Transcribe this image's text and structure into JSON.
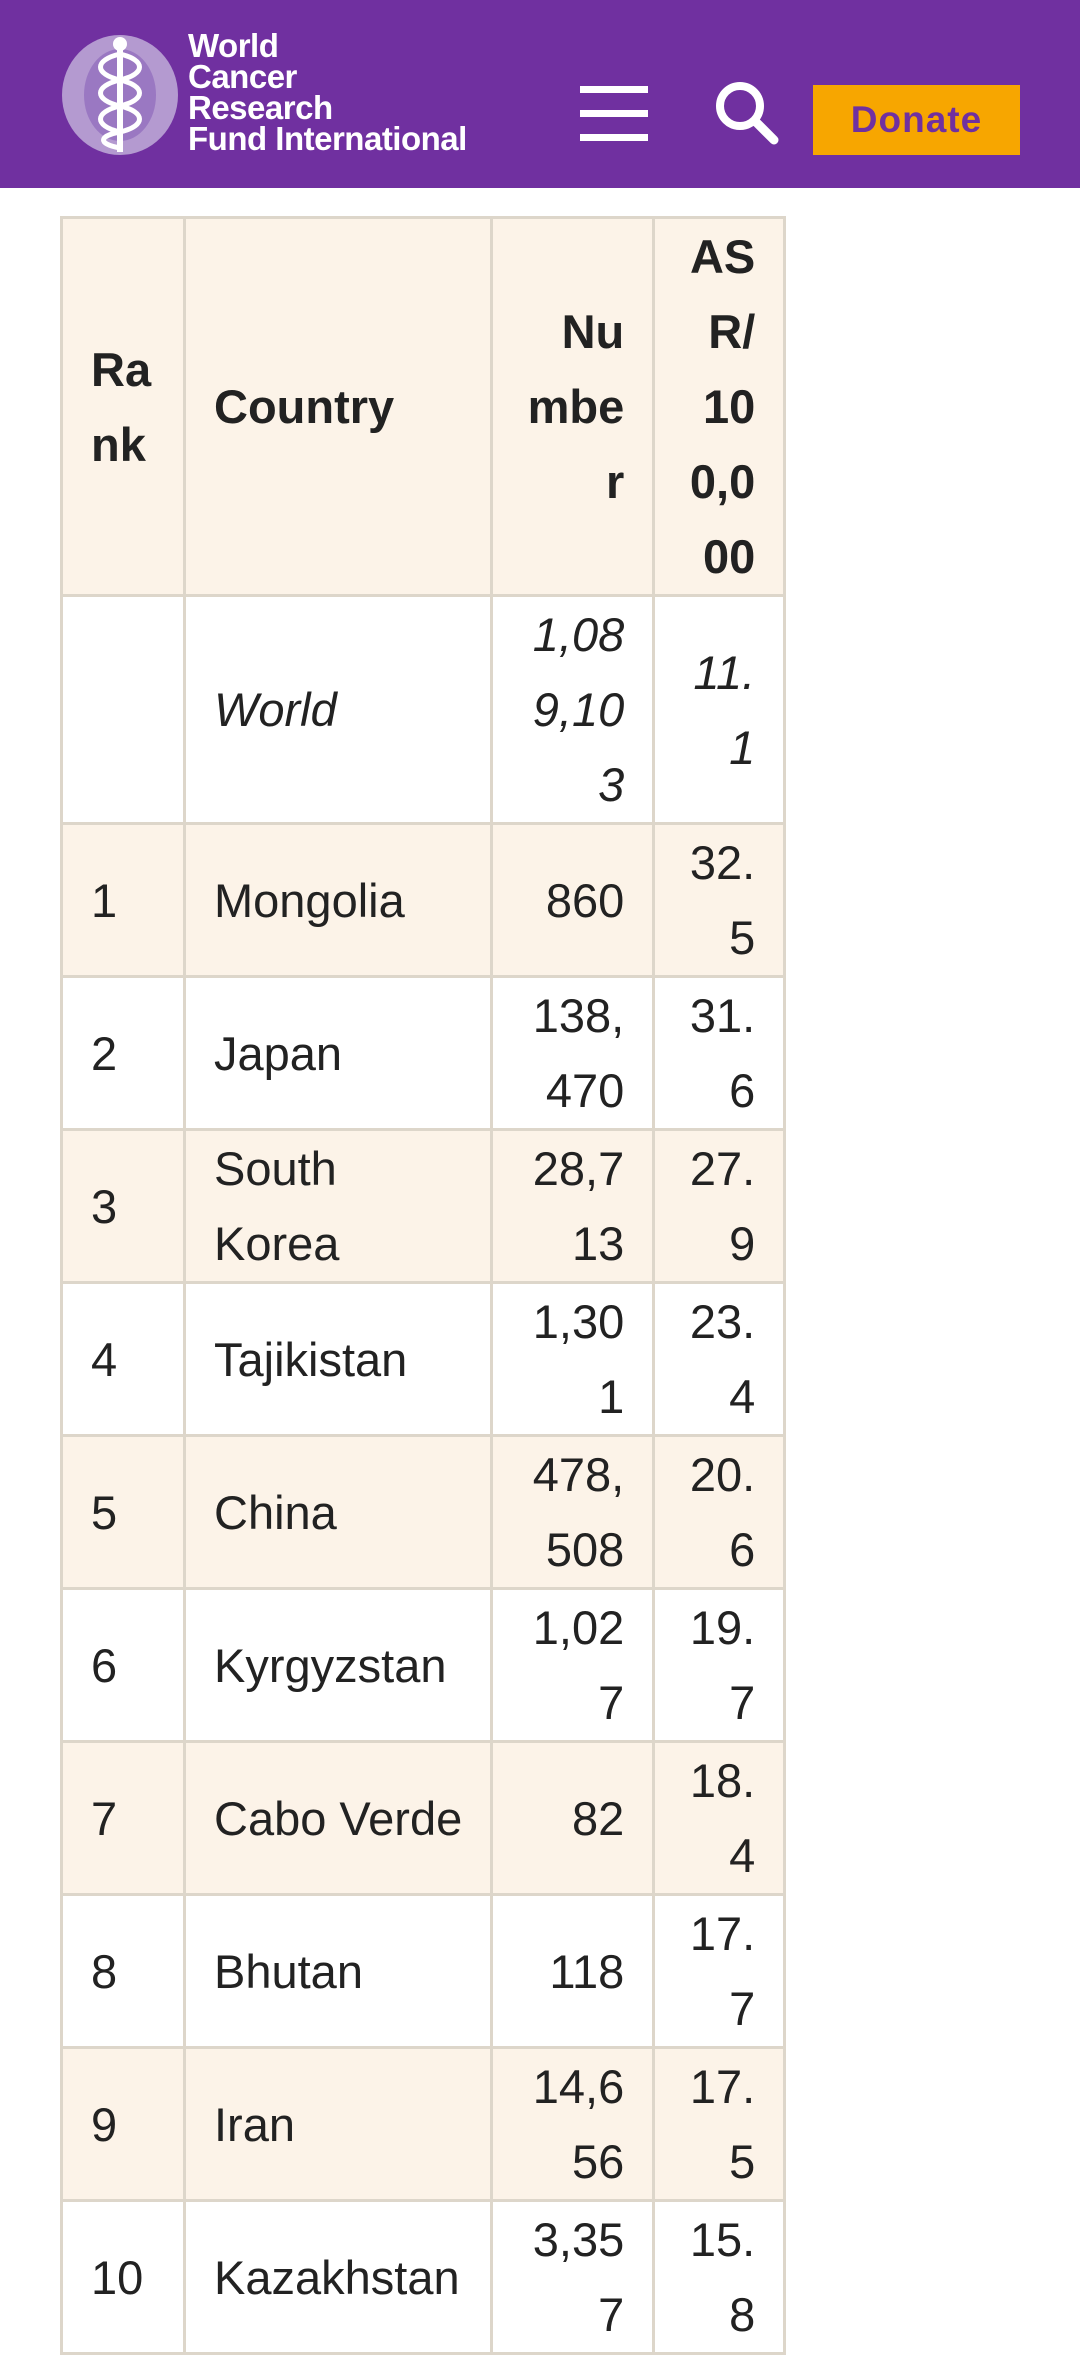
{
  "header": {
    "logo": {
      "lines": [
        "World",
        "Cancer",
        "Research",
        "Fund International"
      ],
      "icon": "caduceus-icon"
    },
    "menu_icon": "hamburger-menu-icon",
    "search_icon": "search-icon",
    "donate_label": "Donate",
    "colors": {
      "brand": "#7030a0",
      "donate_bg": "#f7a600",
      "donate_text": "#7030a0"
    }
  },
  "table": {
    "headers": {
      "rank": "Rank",
      "country": "Country",
      "number": "Number",
      "asr": "ASR/100,000"
    },
    "world": {
      "rank": "",
      "country": "World",
      "number": "1,089,103",
      "asr": "11.1"
    },
    "rows": [
      {
        "rank": "1",
        "country": "Mongolia",
        "number": "860",
        "asr": "32.5"
      },
      {
        "rank": "2",
        "country": "Japan",
        "number": "138,470",
        "asr": "31.6"
      },
      {
        "rank": "3",
        "country": "South Korea",
        "number": "28,713",
        "asr": "27.9"
      },
      {
        "rank": "4",
        "country": "Tajikistan",
        "number": "1,301",
        "asr": "23.4"
      },
      {
        "rank": "5",
        "country": "China",
        "number": "478,508",
        "asr": "20.6"
      },
      {
        "rank": "6",
        "country": "Kyrgyzstan",
        "number": "1,027",
        "asr": "19.7"
      },
      {
        "rank": "7",
        "country": "Cabo Verde",
        "number": "82",
        "asr": "18.4"
      },
      {
        "rank": "8",
        "country": "Bhutan",
        "number": "118",
        "asr": "17.7"
      },
      {
        "rank": "9",
        "country": "Iran",
        "number": "14,656",
        "asr": "17.5"
      },
      {
        "rank": "10",
        "country": "Kazakhstan",
        "number": "3,357",
        "asr": "15.8"
      }
    ],
    "colors": {
      "shaded_row": "#fcf3e8",
      "border": "#ddd6ca"
    }
  }
}
